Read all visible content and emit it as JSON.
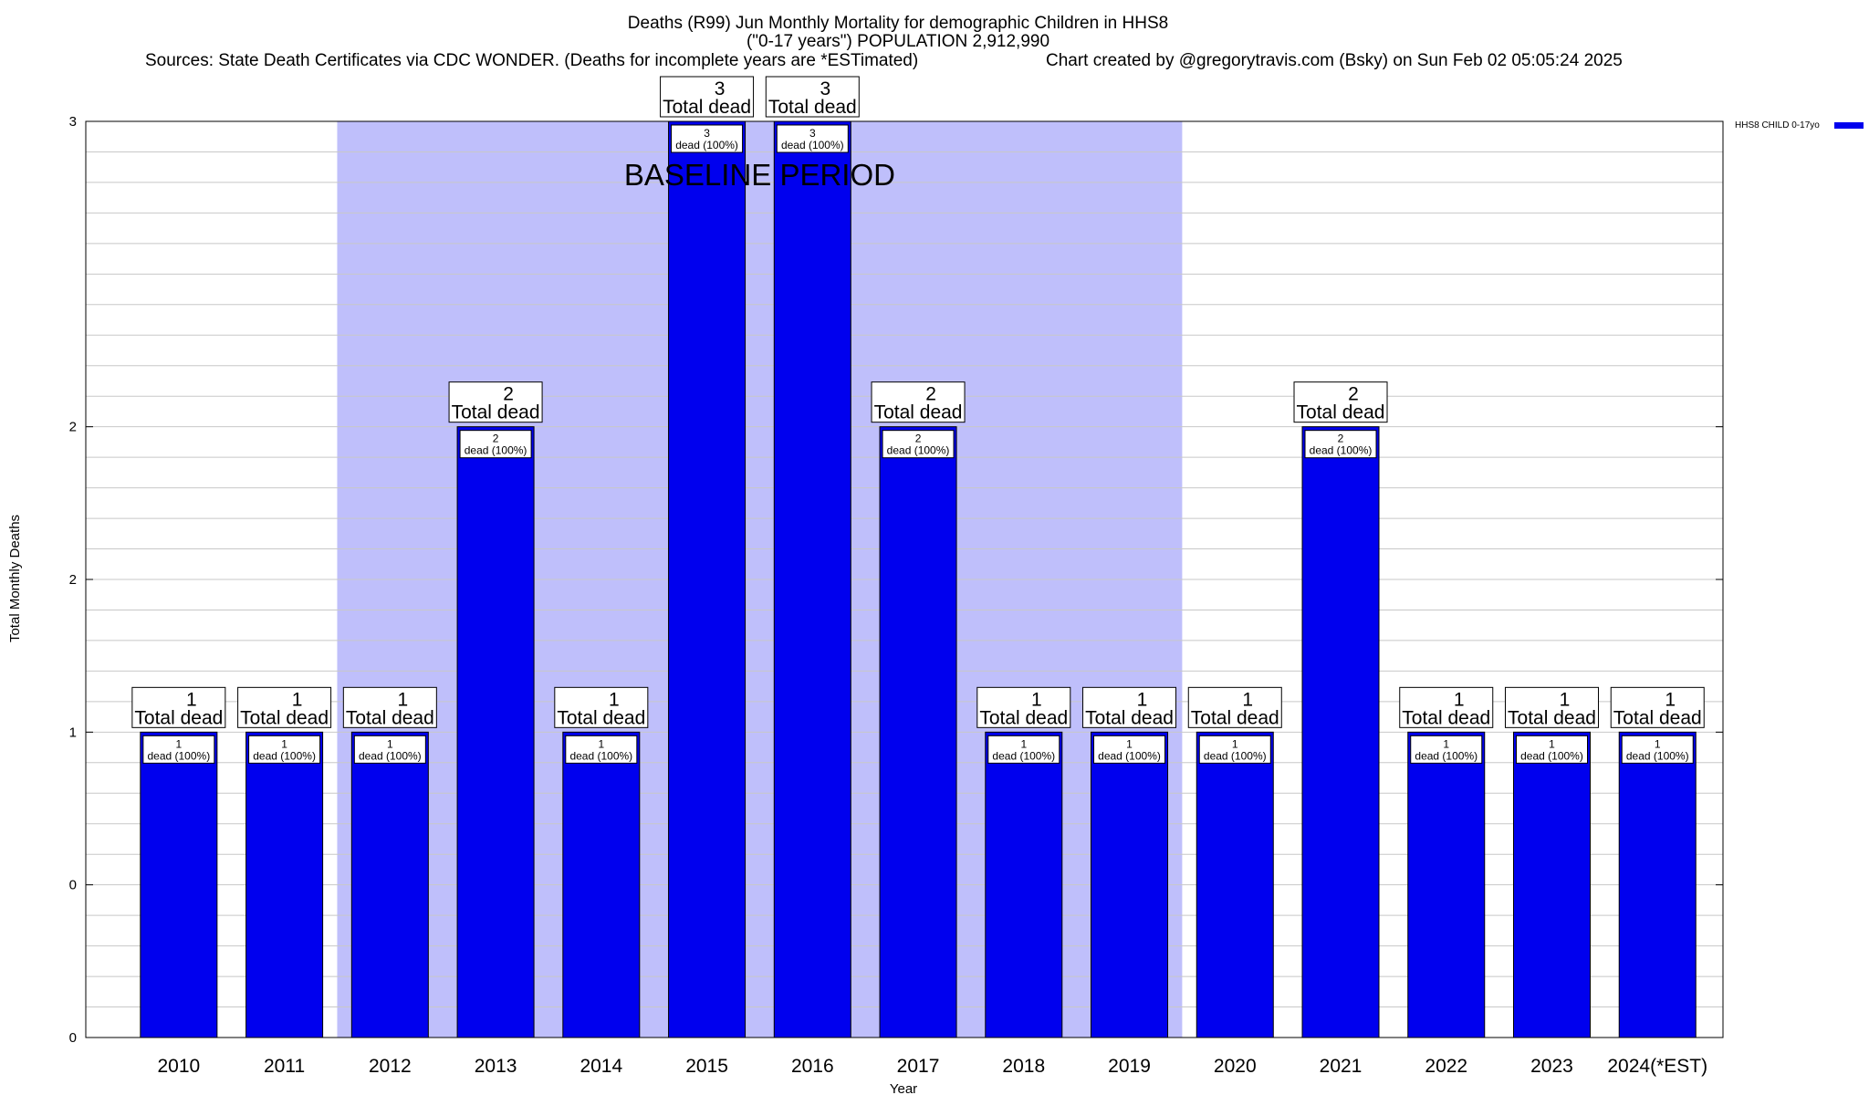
{
  "chart_data": {
    "type": "bar",
    "title": "Deaths (R99) Jun Monthly Mortality for demographic Children in HHS8",
    "subtitle": "(\"0-17 years\") POPULATION 2,912,990",
    "source_note": "Sources: State Death Certificates via CDC WONDER. (Deaths for incomplete years are *ESTimated)",
    "credit_note": "Chart created by @gregorytravis.com (Bsky) on Sun Feb 02 05:05:24 2025",
    "xlabel": "Year",
    "ylabel": "Total Monthly Deaths",
    "categories": [
      "2010",
      "2011",
      "2012",
      "2013",
      "2014",
      "2015",
      "2016",
      "2017",
      "2018",
      "2019",
      "2020",
      "2021",
      "2022",
      "2023",
      "2024(*EST)"
    ],
    "series": [
      {
        "name": "HHS8 CHILD 0-17yo",
        "values": [
          1,
          1,
          1,
          2,
          1,
          3,
          3,
          2,
          1,
          1,
          1,
          2,
          1,
          1,
          1
        ],
        "color": "#0000ee"
      }
    ],
    "ylim": [
      0,
      3
    ],
    "ytick_labels": [
      "0",
      "0",
      "1",
      "2",
      "2",
      "3"
    ],
    "ytick_values": [
      0,
      0.5,
      1,
      1.5,
      2,
      3
    ],
    "total_label_suffix": "Total dead",
    "inner_label_suffix": "dead (100%)",
    "baseline_band": {
      "label": "BASELINE PERIOD",
      "start_category": "2012",
      "end_category": "2019",
      "color": "#bfbffb"
    },
    "legend_position": "top-right",
    "grid": true
  }
}
